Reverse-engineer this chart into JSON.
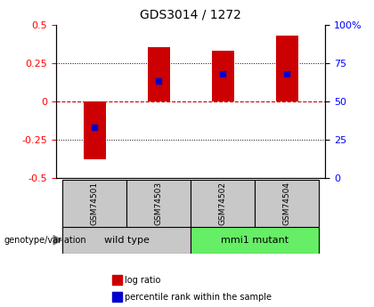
{
  "title": "GDS3014 / 1272",
  "samples": [
    "GSM74501",
    "GSM74503",
    "GSM74502",
    "GSM74504"
  ],
  "log_ratios": [
    -0.38,
    0.35,
    0.33,
    0.43
  ],
  "percentile_ranks": [
    -0.17,
    0.13,
    0.18,
    0.18
  ],
  "bar_color": "#cc0000",
  "dot_color": "#0000cc",
  "ylim": [
    -0.5,
    0.5
  ],
  "yticks_left": [
    -0.5,
    -0.25,
    0,
    0.25,
    0.5
  ],
  "yticks_right": [
    0,
    25,
    50,
    75,
    100
  ],
  "groups": [
    {
      "label": "wild type",
      "indices": [
        0,
        1
      ],
      "color": "#c8c8c8"
    },
    {
      "label": "mmi1 mutant",
      "indices": [
        2,
        3
      ],
      "color": "#66ee66"
    }
  ],
  "group_label": "genotype/variation",
  "zero_line_color": "#cc0000",
  "bar_width": 0.35,
  "sample_box_color": "#c8c8c8",
  "legend_items": [
    {
      "label": "log ratio",
      "color": "#cc0000"
    },
    {
      "label": "percentile rank within the sample",
      "color": "#0000cc"
    }
  ]
}
